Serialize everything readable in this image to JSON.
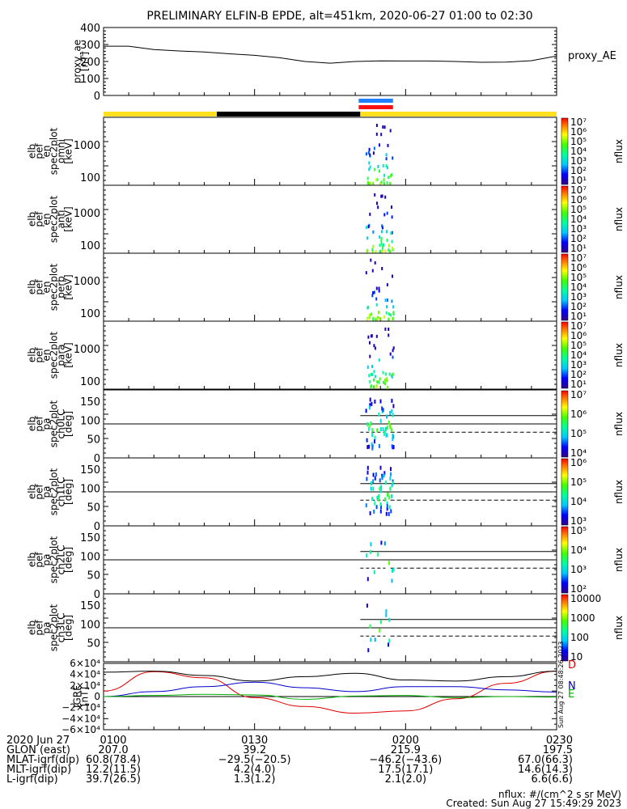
{
  "title": "PRELIMINARY ELFIN-B EPDE, alt=451km, 2020-06-27 01:00 to 02:30",
  "colors": {
    "yellow": "#ffe020",
    "black": "#000000",
    "blue": "#2080ff",
    "red": "#ff1010",
    "igrf_d": "#e00000",
    "igrf_n": "#0000cc",
    "igrf_e": "#00b000"
  },
  "chart_data": [
    {
      "type": "line",
      "panel": "proxy_ae",
      "ylabel_lines": [
        "proxy_ae",
        "[nT]"
      ],
      "legend": "proxy_AE",
      "ylim": [
        0,
        400
      ],
      "yticks": [
        "400",
        "300",
        "200",
        "100",
        "0"
      ],
      "x": [
        0,
        5,
        10,
        15,
        20,
        25,
        30,
        35,
        40,
        45,
        50,
        55,
        60,
        65,
        70,
        75,
        80,
        85,
        90
      ],
      "values": [
        290,
        290,
        270,
        262,
        256,
        245,
        236,
        222,
        200,
        190,
        200,
        204,
        203,
        203,
        200,
        195,
        196,
        205,
        232
      ]
    },
    {
      "type": "bar",
      "panel": "phase bars",
      "bars": [
        {
          "color": "yellow",
          "x0": 0,
          "x1": 22.5
        },
        {
          "color": "black",
          "x0": 22.5,
          "x1": 51
        },
        {
          "color": "yellow",
          "x0": 51,
          "x1": 90
        },
        {
          "color": "blue",
          "x0": 51,
          "x1": 57.5
        },
        {
          "color": "red",
          "x0": 51,
          "x1": 57.5
        }
      ]
    },
    {
      "type": "heatmap",
      "panels": [
        {
          "ylabel_lines": [
            "elb",
            "pef",
            "en",
            "spec2plot",
            "omni",
            "[keV]"
          ],
          "yticks": [
            "1000",
            "100"
          ],
          "cbar": {
            "label": "nflux",
            "ticks": [
              "10⁷",
              "10⁶",
              "10⁵",
              "10⁴",
              "10³",
              "10²",
              "10¹"
            ]
          }
        },
        {
          "ylabel_lines": [
            "elb",
            "pef",
            "en",
            "spec2plot",
            "anti",
            "[keV]"
          ],
          "yticks": [
            "1000",
            "100"
          ],
          "cbar": {
            "label": "nflux",
            "ticks": [
              "10⁷",
              "10⁶",
              "10⁵",
              "10⁴",
              "10³",
              "10²",
              "10¹"
            ]
          }
        },
        {
          "ylabel_lines": [
            "elb",
            "pef",
            "en",
            "spec2plot",
            "perp",
            "[keV]"
          ],
          "yticks": [
            "1000",
            "100"
          ],
          "cbar": {
            "label": "nflux",
            "ticks": [
              "10⁷",
              "10⁶",
              "10⁵",
              "10⁴",
              "10³",
              "10²",
              "10¹"
            ]
          }
        },
        {
          "ylabel_lines": [
            "elb",
            "pef",
            "en",
            "spec2plot",
            "para",
            "[keV]"
          ],
          "yticks": [
            "1000",
            "100"
          ],
          "cbar": {
            "label": "nflux",
            "ticks": [
              "10⁷",
              "10⁶",
              "10⁵",
              "10⁴",
              "10³",
              "10²",
              "10¹"
            ]
          }
        },
        {
          "ylabel_lines": [
            "elb",
            "pef",
            "pa",
            "spec2plot",
            "ch0LC",
            "[deg]"
          ],
          "yticks": [
            "150",
            "100",
            "50",
            "0"
          ],
          "cbar": {
            "label": "nflux",
            "ticks": [
              "10⁷",
              "10⁶",
              "10⁵",
              "10⁴"
            ]
          }
        },
        {
          "ylabel_lines": [
            "elb",
            "pef",
            "pa",
            "spec2plot",
            "ch1LC",
            "[deg]"
          ],
          "yticks": [
            "150",
            "100",
            "50",
            "0"
          ],
          "cbar": {
            "label": "nflux",
            "ticks": [
              "10⁶",
              "10⁵",
              "10⁴",
              "10³"
            ]
          }
        },
        {
          "ylabel_lines": [
            "elb",
            "pef",
            "pa",
            "spec2plot",
            "ch2LC",
            "[deg]"
          ],
          "yticks": [
            "150",
            "100",
            "50",
            "0"
          ],
          "cbar": {
            "label": "nflux",
            "ticks": [
              "10⁵",
              "10⁴",
              "10³",
              "10²"
            ]
          }
        },
        {
          "ylabel_lines": [
            "elb",
            "pef",
            "pa",
            "spec2plot",
            "ch3LC",
            "[deg]"
          ],
          "yticks": [
            "150",
            "100",
            "50"
          ],
          "cbar": {
            "label": "nflux",
            "ticks": [
              "10000",
              "1000",
              "100",
              "10"
            ]
          }
        }
      ]
    },
    {
      "type": "line",
      "panel": "IGRF",
      "ylabel_lines": [
        "IGRF",
        "[nT]"
      ],
      "ylim": [
        -60000,
        60000
      ],
      "yticks": [
        "6×10⁴",
        "4×10⁴",
        "2×10⁴",
        "0",
        "−2×10⁴",
        "−4×10⁴",
        "−6×10⁴"
      ],
      "x": [
        0,
        10,
        20,
        30,
        40,
        50,
        60,
        70,
        80,
        90
      ],
      "series": [
        {
          "name": "D",
          "color": "igrf_d",
          "values": [
            10000,
            45000,
            34000,
            -2000,
            -18000,
            -30000,
            -26000,
            -4000,
            24000,
            46000
          ]
        },
        {
          "name": "N",
          "color": "igrf_n",
          "values": [
            0,
            9000,
            18000,
            26000,
            16000,
            9000,
            18000,
            18000,
            12000,
            8000
          ]
        },
        {
          "name": "E",
          "color": "igrf_e",
          "values": [
            0,
            2000,
            4000,
            3000,
            -5000,
            1000,
            2000,
            -2000,
            0,
            -1000
          ]
        },
        {
          "name": "",
          "color": "black",
          "values": [
            44000,
            46000,
            38000,
            28000,
            36000,
            42000,
            30000,
            28000,
            36000,
            46000
          ]
        }
      ],
      "stamp": "Sun Aug 27 08:48:26 2023"
    }
  ],
  "footer": {
    "rows": [
      {
        "label": "2020 Jun 27",
        "vals": [
          "0100",
          "0130",
          "0200",
          "0230"
        ]
      },
      {
        "label": "GLON (east)",
        "vals": [
          "207.0",
          "39.2",
          "215.9",
          "197.5"
        ]
      },
      {
        "label": "MLAT-igrf(dip)",
        "vals": [
          "60.8(78.4)",
          "−29.5(−20.5)",
          "−46.2(−43.6)",
          "67.0(66.3)"
        ]
      },
      {
        "label": "MLT-igrf(dip)",
        "vals": [
          "12.2(11.5)",
          "4.2(4.0)",
          "17.5(17.1)",
          "14.6(14.3)"
        ]
      },
      {
        "label": "L-igrf(dip)",
        "vals": [
          "39.7(26.5)",
          "1.3(1.2)",
          "2.1(2.0)",
          "6.6(6.6)"
        ]
      }
    ],
    "units": "nflux: #/(cm^2 s sr MeV)",
    "created": "Created: Sun Aug 27 15:49:29 2023"
  }
}
